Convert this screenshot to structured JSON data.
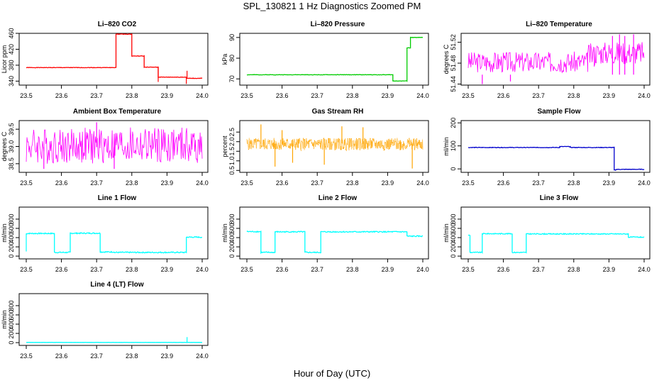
{
  "figure": {
    "title": "SPL_130821  1 Hz Diagnostics Zoomed PM",
    "xlabel": "Hour of Day (UTC)"
  },
  "colors": {
    "red": "#ff0000",
    "green": "#00cc00",
    "magenta": "#ff00ff",
    "orange": "#ffa500",
    "blue": "#0000cc",
    "cyan": "#00ffff",
    "axis": "#000000"
  },
  "chart_data": [
    {
      "id": "co2",
      "type": "line",
      "title": "Li–820 CO2",
      "ylabel": "Licor ppm",
      "xlim": [
        23.5,
        24.0
      ],
      "ylim": [
        330,
        460
      ],
      "xticks": [
        "23.5",
        "23.6",
        "23.7",
        "23.8",
        "23.9",
        "24.0"
      ],
      "yticks": [
        340,
        380,
        420,
        460
      ],
      "ytick_labels": [
        "340",
        "380",
        "420",
        "460"
      ],
      "color": "red",
      "noise": 0.6,
      "seed": 1,
      "segments": [
        [
          23.5,
          23.755,
          374
        ],
        [
          23.755,
          23.8,
          458
        ],
        [
          23.8,
          23.835,
          403
        ],
        [
          23.835,
          23.875,
          375
        ],
        [
          23.875,
          23.955,
          350
        ],
        [
          23.955,
          24.0,
          347
        ]
      ],
      "spikes": [
        [
          23.955,
          333
        ],
        [
          23.957,
          366
        ],
        [
          23.875,
          338
        ]
      ]
    },
    {
      "id": "pressure",
      "type": "line",
      "title": "Li–820 Pressure",
      "ylabel": "kPa",
      "xlim": [
        23.5,
        24.0
      ],
      "ylim": [
        67,
        92
      ],
      "xticks": [
        "23.5",
        "23.6",
        "23.7",
        "23.8",
        "23.9",
        "24.0"
      ],
      "yticks": [
        70,
        80,
        90
      ],
      "ytick_labels": [
        "70",
        "80",
        "90"
      ],
      "color": "green",
      "noise": 0.1,
      "seed": 2,
      "segments": [
        [
          23.5,
          23.915,
          72
        ],
        [
          23.915,
          23.955,
          69
        ],
        [
          23.955,
          23.965,
          85
        ],
        [
          23.965,
          24.0,
          90
        ]
      ],
      "spikes": []
    },
    {
      "id": "licor_temp",
      "type": "noise",
      "title": "Li–820 Temperature",
      "ylabel": "degrees C",
      "xlim": [
        23.5,
        24.0
      ],
      "ylim": [
        51.438,
        51.537
      ],
      "xticks": [
        "23.5",
        "23.6",
        "23.7",
        "23.8",
        "23.9",
        "24.0"
      ],
      "yticks": [
        51.44,
        51.48,
        51.52
      ],
      "ytick_labels": [
        "51.44",
        "51.48",
        "51.52"
      ],
      "color": "magenta",
      "seed": 3,
      "density": 1,
      "bands": [
        [
          23.5,
          23.84,
          51.462,
          51.502,
          51.458
        ],
        [
          23.84,
          23.86,
          51.472,
          51.518,
          51.462
        ],
        [
          23.86,
          24.0,
          51.478,
          51.522,
          51.47
        ]
      ],
      "spikes": [
        [
          23.62,
          51.445
        ],
        [
          23.91,
          51.532
        ],
        [
          23.93,
          51.535
        ],
        [
          23.945,
          51.532
        ],
        [
          23.97,
          51.535
        ],
        [
          23.54,
          51.44
        ]
      ]
    },
    {
      "id": "box_temp",
      "type": "noise",
      "title": "Ambient Box Temperature",
      "ylabel": "degrees C",
      "xlim": [
        23.5,
        24.0
      ],
      "ylim": [
        38.25,
        39.75
      ],
      "xticks": [
        "23.5",
        "23.6",
        "23.7",
        "23.8",
        "23.9",
        "24.0"
      ],
      "yticks": [
        38.5,
        39.0,
        39.5
      ],
      "ytick_labels": [
        "38.5",
        "39.0",
        "39.5"
      ],
      "color": "magenta",
      "seed": 4,
      "density": 1,
      "bands": [
        [
          23.5,
          24.0,
          38.5,
          39.55,
          38.98
        ]
      ],
      "spikes": [
        [
          23.7,
          39.7
        ],
        [
          23.75,
          38.35
        ],
        [
          23.55,
          38.35
        ]
      ]
    },
    {
      "id": "rh",
      "type": "noise",
      "title": "Gas Stream RH",
      "ylabel": "percent",
      "xlim": [
        23.5,
        24.0
      ],
      "ylim": [
        0.4,
        3.1
      ],
      "xticks": [
        "23.5",
        "23.6",
        "23.7",
        "23.8",
        "23.9",
        "24.0"
      ],
      "yticks": [
        0.5,
        1.0,
        1.5,
        2.0,
        2.5
      ],
      "ytick_labels": [
        "0.5",
        "1.0",
        "1.5",
        "2.0",
        "2.5"
      ],
      "color": "orange",
      "seed": 5,
      "density": 2,
      "dotted": true,
      "bands": [
        [
          23.5,
          24.0,
          1.55,
          2.2,
          1.9
        ]
      ],
      "spikes": [
        [
          23.54,
          2.9
        ],
        [
          23.58,
          0.7
        ],
        [
          23.63,
          0.9
        ],
        [
          23.77,
          2.8
        ],
        [
          23.83,
          2.75
        ],
        [
          23.97,
          0.6
        ],
        [
          23.72,
          0.8
        ],
        [
          23.6,
          2.6
        ]
      ]
    },
    {
      "id": "sample_flow",
      "type": "line",
      "title": "Sample Flow",
      "ylabel": "ml/min",
      "xlim": [
        23.5,
        24.0
      ],
      "ylim": [
        -15,
        210
      ],
      "xticks": [
        "23.5",
        "23.6",
        "23.7",
        "23.8",
        "23.9",
        "24.0"
      ],
      "yticks": [
        0,
        100,
        200
      ],
      "ytick_labels": [
        "0",
        "100",
        "200"
      ],
      "color": "blue",
      "noise": 1.2,
      "seed": 6,
      "segments": [
        [
          23.5,
          23.76,
          93
        ],
        [
          23.76,
          23.79,
          97
        ],
        [
          23.79,
          23.915,
          93
        ],
        [
          23.915,
          23.92,
          -5
        ],
        [
          23.92,
          24.0,
          -2
        ]
      ],
      "spikes": []
    },
    {
      "id": "line1",
      "type": "line",
      "title": "Line 1 Flow",
      "ylabel": "ml/min",
      "xlim": [
        23.5,
        24.0
      ],
      "ylim": [
        -60,
        1060
      ],
      "xticks": [
        "23.5",
        "23.6",
        "23.7",
        "23.8",
        "23.9",
        "24.0"
      ],
      "yticks": [
        0,
        200,
        400,
        600,
        800
      ],
      "ytick_labels": [
        "0",
        "200",
        "400",
        "600",
        "800"
      ],
      "color": "cyan",
      "noise": 12,
      "seed": 7,
      "segments": [
        [
          23.5,
          23.58,
          490
        ],
        [
          23.58,
          23.625,
          80
        ],
        [
          23.625,
          23.71,
          495
        ],
        [
          23.71,
          23.75,
          90
        ],
        [
          23.75,
          23.955,
          80
        ],
        [
          23.955,
          24.0,
          410
        ]
      ],
      "spikes": [
        [
          23.5,
          100
        ]
      ]
    },
    {
      "id": "line2",
      "type": "line",
      "title": "Line 2 Flow",
      "ylabel": "ml/min",
      "xlim": [
        23.5,
        24.0
      ],
      "ylim": [
        -60,
        1060
      ],
      "xticks": [
        "23.5",
        "23.6",
        "23.7",
        "23.8",
        "23.9",
        "24.0"
      ],
      "yticks": [
        0,
        200,
        400,
        600,
        800
      ],
      "ytick_labels": [
        "0",
        "200",
        "400",
        "600",
        "800"
      ],
      "color": "cyan",
      "noise": 12,
      "seed": 8,
      "segments": [
        [
          23.5,
          23.54,
          530
        ],
        [
          23.54,
          23.58,
          80
        ],
        [
          23.58,
          23.665,
          525
        ],
        [
          23.665,
          23.71,
          80
        ],
        [
          23.71,
          23.955,
          525
        ],
        [
          23.955,
          24.0,
          430
        ]
      ],
      "spikes": []
    },
    {
      "id": "line3",
      "type": "line",
      "title": "Line 3 Flow",
      "ylabel": "ml/min",
      "xlim": [
        23.5,
        24.0
      ],
      "ylim": [
        -60,
        1060
      ],
      "xticks": [
        "23.5",
        "23.6",
        "23.7",
        "23.8",
        "23.9",
        "24.0"
      ],
      "yticks": [
        0,
        200,
        400,
        600,
        800
      ],
      "ytick_labels": [
        "0",
        "200",
        "400",
        "600",
        "800"
      ],
      "color": "cyan",
      "noise": 10,
      "seed": 9,
      "segments": [
        [
          23.5,
          23.505,
          450
        ],
        [
          23.505,
          23.54,
          80
        ],
        [
          23.54,
          23.625,
          485
        ],
        [
          23.625,
          23.665,
          80
        ],
        [
          23.665,
          23.955,
          480
        ],
        [
          23.955,
          24.0,
          410
        ]
      ],
      "spikes": []
    },
    {
      "id": "line4",
      "type": "line",
      "title": "Line 4 (LT) Flow",
      "ylabel": "ml/min",
      "xlim": [
        23.5,
        24.0
      ],
      "ylim": [
        -60,
        1060
      ],
      "xticks": [
        "23.5",
        "23.6",
        "23.7",
        "23.8",
        "23.9",
        "24.0"
      ],
      "yticks": [
        0,
        200,
        400,
        600,
        800
      ],
      "ytick_labels": [
        "0",
        "200",
        "400",
        "600",
        "800"
      ],
      "color": "cyan",
      "noise": 1,
      "seed": 10,
      "segments": [
        [
          23.5,
          24.0,
          5
        ]
      ],
      "spikes": [
        [
          23.957,
          120
        ]
      ]
    }
  ]
}
